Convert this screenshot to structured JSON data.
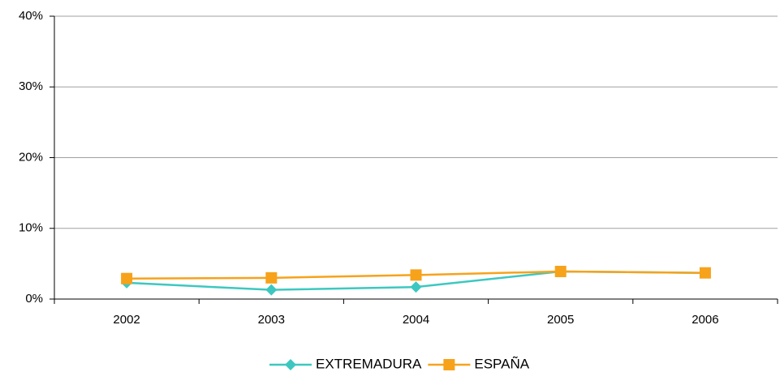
{
  "chart_data": {
    "type": "line",
    "categories": [
      "2002",
      "2003",
      "2004",
      "2005",
      "2006"
    ],
    "series": [
      {
        "name": "EXTREMADURA",
        "color": "#3cc8c0",
        "marker": "diamond",
        "values": [
          2.3,
          1.3,
          1.7,
          3.9,
          3.7
        ]
      },
      {
        "name": "ESPAÑA",
        "color": "#f7a21b",
        "marker": "square",
        "values": [
          2.9,
          3.0,
          3.4,
          3.9,
          3.7
        ]
      }
    ],
    "ylim": [
      0,
      40
    ],
    "yticks": [
      {
        "value": 0,
        "label": "0%"
      },
      {
        "value": 10,
        "label": "10%"
      },
      {
        "value": 20,
        "label": "20%"
      },
      {
        "value": 30,
        "label": "30%"
      },
      {
        "value": 40,
        "label": "40%"
      }
    ],
    "grid": true,
    "legend": "bottom"
  }
}
